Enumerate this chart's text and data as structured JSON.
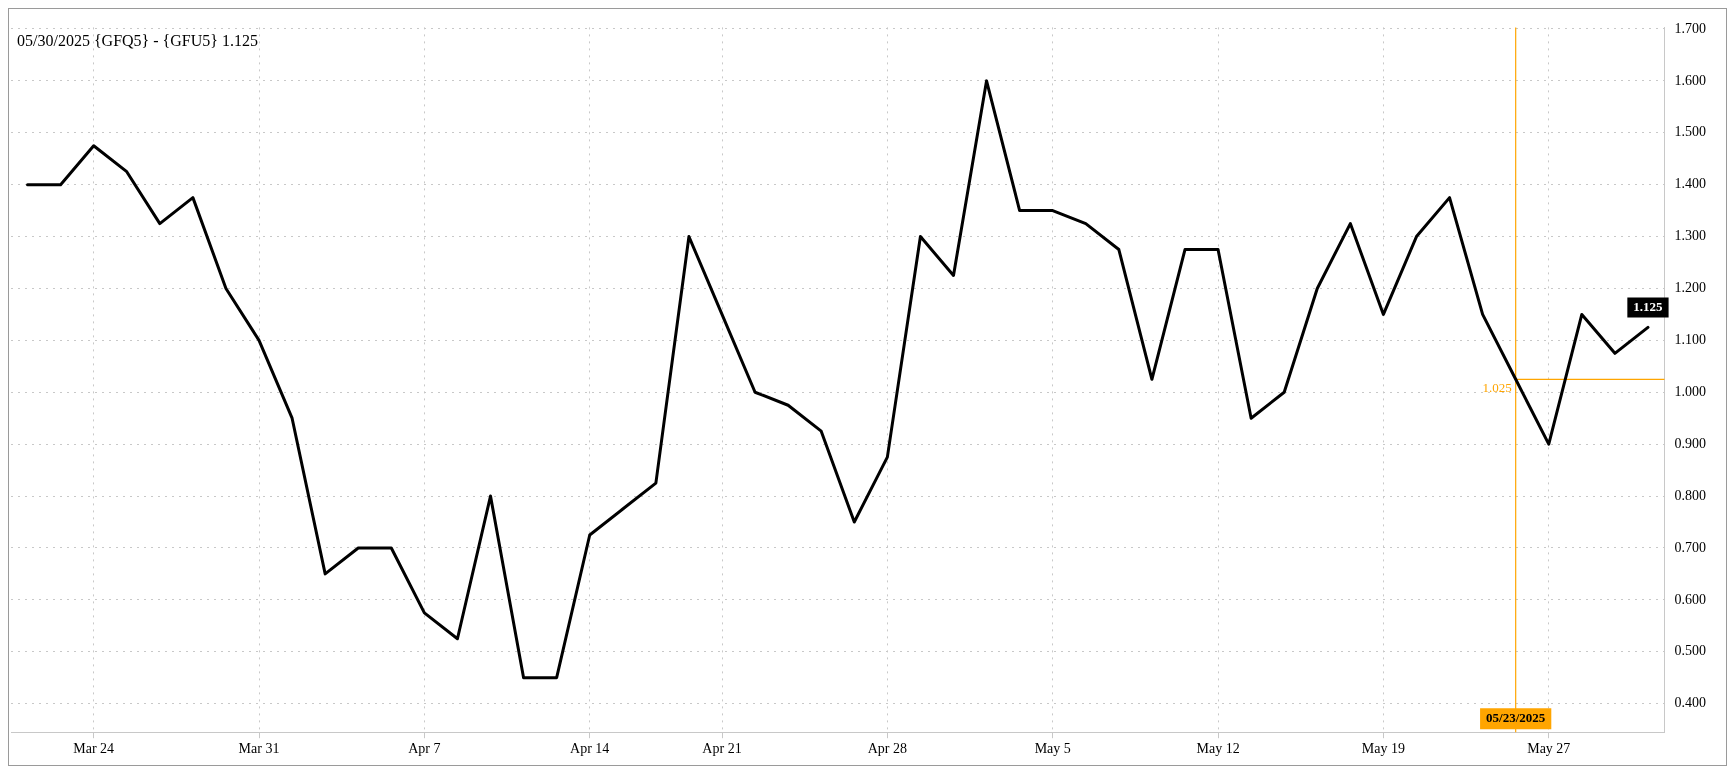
{
  "chart_data": {
    "type": "line",
    "title": "05/30/2025 {GFQ5} - {GFU5} 1.125",
    "categories": [
      null,
      null,
      "Mar 24",
      null,
      null,
      null,
      null,
      "Mar 31",
      null,
      null,
      null,
      null,
      "Apr 7",
      null,
      null,
      null,
      null,
      "Apr 14",
      null,
      null,
      null,
      "Apr 21",
      null,
      null,
      null,
      null,
      "Apr 28",
      null,
      null,
      null,
      null,
      "May 5",
      null,
      null,
      null,
      null,
      "May 12",
      null,
      null,
      null,
      null,
      "May 19",
      null,
      null,
      null,
      "05/23/2025",
      "May 27",
      null,
      null,
      null
    ],
    "values": [
      1.4,
      1.4,
      1.475,
      1.425,
      1.325,
      1.375,
      1.2,
      1.1,
      0.95,
      0.65,
      0.7,
      0.7,
      0.575,
      0.525,
      0.8,
      0.45,
      0.45,
      0.725,
      0.775,
      0.825,
      1.3,
      1.15,
      1.0,
      0.975,
      0.925,
      0.75,
      0.875,
      1.3,
      1.225,
      1.6,
      1.35,
      1.35,
      1.325,
      1.275,
      1.025,
      1.275,
      1.275,
      0.95,
      1.0,
      1.2,
      1.325,
      1.15,
      1.3,
      1.375,
      1.15,
      1.025,
      0.9,
      1.15,
      1.075,
      1.125
    ],
    "value_labels": [
      null,
      null,
      null,
      null,
      null,
      null,
      null,
      null,
      null,
      null,
      null,
      null,
      null,
      null,
      null,
      null,
      null,
      null,
      null,
      null,
      null,
      null,
      null,
      null,
      null,
      null,
      null,
      null,
      null,
      null,
      null,
      null,
      null,
      null,
      null,
      null,
      null,
      null,
      null,
      null,
      null,
      null,
      null,
      null,
      null,
      null,
      null,
      null,
      null,
      "1.125"
    ],
    "color": "#000000",
    "ylim": [
      0.345,
      1.703
    ],
    "yticks": [
      {
        "value": 0.4,
        "label": "0.400"
      },
      {
        "value": 0.5,
        "label": "0.500"
      },
      {
        "value": 0.6,
        "label": "0.600"
      },
      {
        "value": 0.7,
        "label": "0.700"
      },
      {
        "value": 0.8,
        "label": "0.800"
      },
      {
        "value": 0.9,
        "label": "0.900"
      },
      {
        "value": 1.0,
        "label": "1.000"
      },
      {
        "value": 1.1,
        "label": "1.100"
      },
      {
        "value": 1.2,
        "label": "1.200"
      },
      {
        "value": 1.3,
        "label": "1.300"
      },
      {
        "value": 1.4,
        "label": "1.400"
      },
      {
        "value": 1.5,
        "label": "1.500"
      },
      {
        "value": 1.6,
        "label": "1.600"
      },
      {
        "value": 1.7,
        "label": "1.700"
      }
    ],
    "ref_lines": [
      {
        "axis": "x",
        "value": "05/23/2025",
        "color": "#ffa500"
      },
      {
        "axis": "y",
        "value": 1.025,
        "label": "1.025",
        "color": "#ffa500"
      }
    ],
    "grid": true,
    "marker": "none",
    "line_style": "solid"
  }
}
